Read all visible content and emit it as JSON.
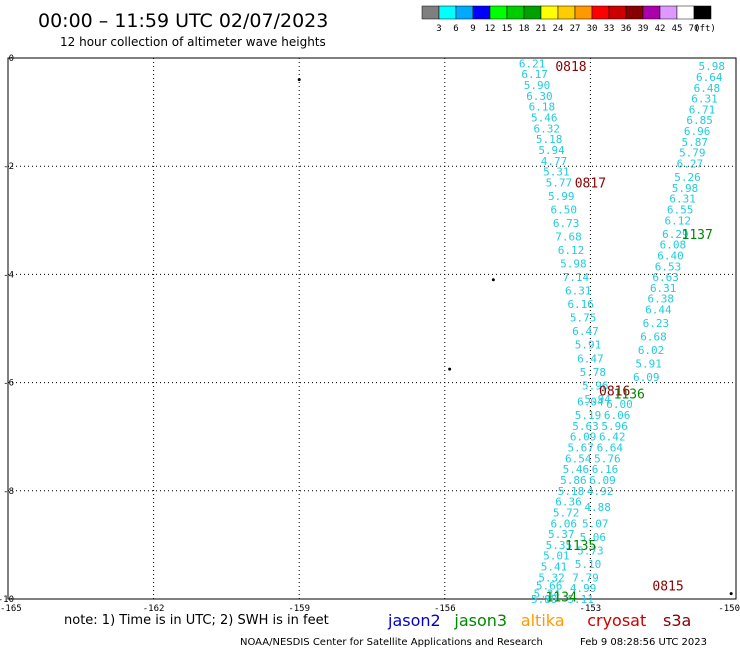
{
  "header": {
    "title": "00:00 – 11:59 UTC 02/07/2023",
    "subtitle": "12 hour collection of altimeter wave heights"
  },
  "colorbar": {
    "colors": [
      "#7f7f7f",
      "#00ffff",
      "#00aaff",
      "#0000ff",
      "#00ff00",
      "#00cc00",
      "#00a000",
      "#ffff00",
      "#ffcc00",
      "#ff9900",
      "#ff0000",
      "#cc0000",
      "#880000",
      "#aa00aa",
      "#dd99ff",
      "#ffffff",
      "#000000"
    ],
    "labels": [
      "3",
      "6",
      "9",
      "12",
      "15",
      "18",
      "21",
      "24",
      "27",
      "30",
      "33",
      "36",
      "39",
      "42",
      "45",
      "70",
      "(ft)"
    ]
  },
  "axes": {
    "x_ticks": [
      "-165",
      "-162",
      "-159",
      "-156",
      "-153",
      "-150"
    ],
    "y_ticks": [
      "0",
      "-2",
      "-4",
      "-6",
      "-8",
      "-10"
    ]
  },
  "legend": {
    "note": "note: 1) Time is in UTC; 2) SWH is in feet",
    "items": [
      {
        "label": "jason2",
        "color": "#0000cc"
      },
      {
        "label": "jason3",
        "color": "#008800"
      },
      {
        "label": "altika",
        "color": "#ff9900"
      },
      {
        "label": "cryosat",
        "color": "#cc0000"
      },
      {
        "label": "s3a",
        "color": "#880000"
      }
    ]
  },
  "footer": {
    "credit": "NOAA/NESDIS Center for Satellite Applications and Research",
    "timestamp": "Feb  9 08:28:56 UTC 2023"
  },
  "chart_data": {
    "type": "scatter",
    "xlim": [
      -165,
      -150
    ],
    "ylim": [
      -10,
      0
    ],
    "grid": true,
    "point_color": "#22ccdd",
    "tracks": [
      {
        "lon": [
          -154.2,
          -154.15,
          -154.1,
          -154.05,
          -154.0,
          -153.95,
          -153.9,
          -153.85,
          -153.8,
          -153.75,
          -153.7,
          -153.65,
          -153.6,
          -153.55,
          -153.5,
          -153.45,
          -153.4,
          -153.35,
          -153.3,
          -153.25,
          -153.2,
          -153.15,
          -153.1,
          -153.05,
          -153.0,
          -152.95,
          -152.9,
          -152.85
        ],
        "lat": [
          -0.1,
          -0.3,
          -0.5,
          -0.7,
          -0.9,
          -1.1,
          -1.3,
          -1.5,
          -1.7,
          -1.9,
          -2.1,
          -2.3,
          -2.55,
          -2.8,
          -3.05,
          -3.3,
          -3.55,
          -3.8,
          -4.05,
          -4.3,
          -4.55,
          -4.8,
          -5.05,
          -5.3,
          -5.55,
          -5.8,
          -6.05,
          -6.3
        ],
        "values": [
          "6.21",
          "6.17",
          "5.90",
          "6.30",
          "6.18",
          "5.46",
          "6.32",
          "5.18",
          "5.94",
          "4.77",
          "5.31",
          "5.77",
          "5.99",
          "6.50",
          "6.73",
          "7.68",
          "6.12",
          "5.98",
          "7.14",
          "6.31",
          "6.16",
          "5.75",
          "6.47",
          "5.91",
          "6.47",
          "5.78",
          "5.96",
          "5.94"
        ]
      },
      {
        "lon": [
          -150.5,
          -150.55,
          -150.6,
          -150.65,
          -150.7,
          -150.75,
          -150.8,
          -150.85,
          -150.9,
          -150.95,
          -151.0,
          -151.05,
          -151.1,
          -151.15,
          -151.2,
          -151.25,
          -151.3,
          -151.35,
          -151.4,
          -151.45,
          -151.5,
          -151.55,
          -151.6,
          -151.65,
          -151.7,
          -151.75,
          -151.8,
          -151.85
        ],
        "lat": [
          -0.15,
          -0.35,
          -0.55,
          -0.75,
          -0.95,
          -1.15,
          -1.35,
          -1.55,
          -1.75,
          -1.95,
          -2.2,
          -2.4,
          -2.6,
          -2.8,
          -3.0,
          -3.25,
          -3.45,
          -3.65,
          -3.85,
          -4.05,
          -4.25,
          -4.45,
          -4.65,
          -4.9,
          -5.15,
          -5.4,
          -5.65,
          -5.9
        ],
        "values": [
          "5.98",
          "6.64",
          "6.48",
          "6.31",
          "6.71",
          "6.85",
          "6.96",
          "5.87",
          "5.79",
          "6.27",
          "5.26",
          "5.98",
          "6.31",
          "6.55",
          "6.12",
          "6.29",
          "6.08",
          "6.40",
          "6.53",
          "6.63",
          "6.31",
          "6.38",
          "6.44",
          "6.23",
          "6.68",
          "6.02",
          "5.91",
          "6.09"
        ]
      },
      {
        "lon": [
          -153.0,
          -153.05,
          -153.1,
          -153.15,
          -153.2,
          -153.25,
          -153.3,
          -153.35,
          -153.4,
          -153.45,
          -153.5,
          -153.55,
          -153.6,
          -153.65,
          -153.7,
          -153.75,
          -153.8,
          -153.85,
          -153.9,
          -153.95
        ],
        "lat": [
          -6.35,
          -6.6,
          -6.8,
          -7.0,
          -7.2,
          -7.4,
          -7.6,
          -7.8,
          -8.0,
          -8.2,
          -8.4,
          -8.6,
          -8.8,
          -9.0,
          -9.2,
          -9.4,
          -9.6,
          -9.75,
          -9.9,
          -10.0
        ],
        "values": [
          "6.04",
          "5.19",
          "5.63",
          "6.09",
          "5.67",
          "6.54",
          "5.46",
          "5.86",
          "5.18",
          "6.36",
          "5.72",
          "6.06",
          "5.37",
          "5.35",
          "5.01",
          "5.41",
          "5.32",
          "5.66",
          "5.34",
          "5.89"
        ]
      },
      {
        "lon": [
          -152.4,
          -152.45,
          -152.5,
          -152.55,
          -152.6,
          -152.65,
          -152.7,
          -152.75,
          -152.8,
          -152.85,
          -152.9,
          -152.95,
          -153.0,
          -153.05,
          -153.1,
          -153.15,
          -153.2
        ],
        "lat": [
          -6.4,
          -6.6,
          -6.8,
          -7.0,
          -7.2,
          -7.4,
          -7.6,
          -7.8,
          -8.0,
          -8.3,
          -8.6,
          -8.85,
          -9.1,
          -9.35,
          -9.6,
          -9.8,
          -10.0
        ],
        "values": [
          "6.00",
          "6.06",
          "5.96",
          "6.42",
          "6.64",
          "5.76",
          "6.16",
          "6.09",
          "4.92",
          "4.88",
          "5.07",
          "5.06",
          "5.73",
          "5.10",
          "7.79",
          "4.99",
          "5.11"
        ]
      }
    ],
    "time_labels": [
      {
        "text": "0818",
        "lon": -153.4,
        "lat": -0.15,
        "color": "#880000"
      },
      {
        "text": "0817",
        "lon": -153.0,
        "lat": -2.3,
        "color": "#880000"
      },
      {
        "text": "1137",
        "lon": -150.8,
        "lat": -3.25,
        "color": "#008800"
      },
      {
        "text": "0816",
        "lon": -152.5,
        "lat": -6.15,
        "color": "#880000"
      },
      {
        "text": "1136",
        "lon": -152.2,
        "lat": -6.2,
        "color": "#008800"
      },
      {
        "text": "1135",
        "lon": -153.2,
        "lat": -9.0,
        "color": "#008800"
      },
      {
        "text": "0815",
        "lon": -151.4,
        "lat": -9.75,
        "color": "#880000"
      },
      {
        "text": "1134",
        "lon": -153.6,
        "lat": -9.95,
        "color": "#008800"
      }
    ],
    "islands": [
      {
        "lon": -159.0,
        "lat": -0.4
      },
      {
        "lon": -155.0,
        "lat": -4.1
      },
      {
        "lon": -155.9,
        "lat": -5.75
      },
      {
        "lon": -150.1,
        "lat": -9.9
      }
    ]
  }
}
